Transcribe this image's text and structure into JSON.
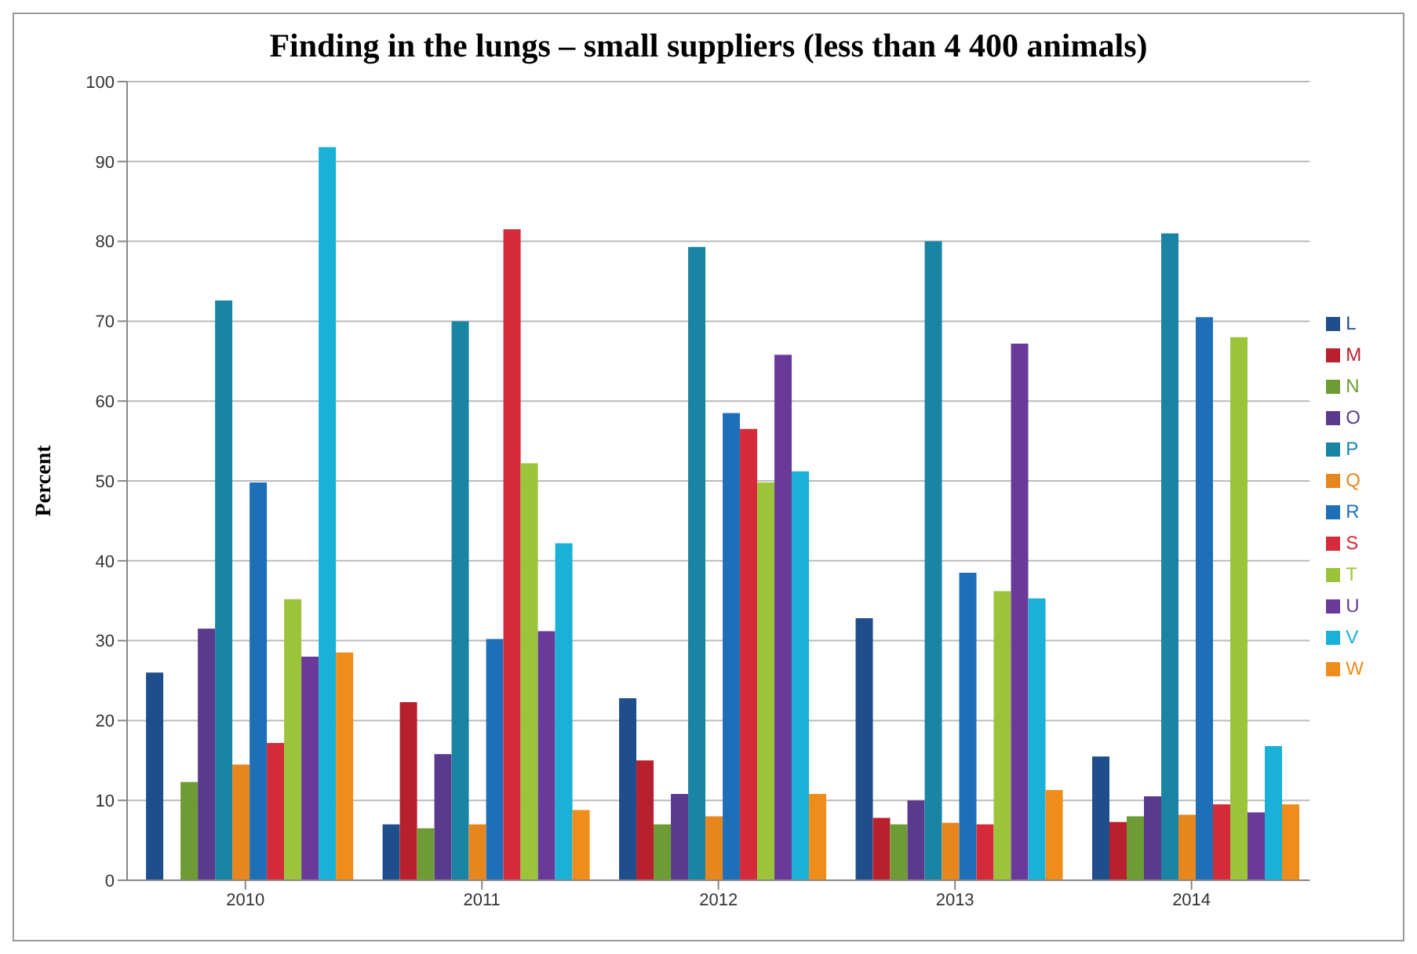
{
  "chart_data": {
    "type": "bar",
    "title": "Finding in the lungs – small suppliers (less than 4 400 animals)",
    "ylabel": "Percent",
    "categories": [
      "2010",
      "2011",
      "2012",
      "2013",
      "2014"
    ],
    "series": [
      {
        "name": "L",
        "color": "#1f4e8c",
        "values": [
          26,
          7,
          22.8,
          32.8,
          15.5
        ]
      },
      {
        "name": "M",
        "color": "#b8202e",
        "values": [
          null,
          22.3,
          15,
          7.8,
          7.3
        ]
      },
      {
        "name": "N",
        "color": "#6e9c34",
        "values": [
          12.3,
          6.5,
          7,
          7,
          8
        ]
      },
      {
        "name": "O",
        "color": "#5a3a8c",
        "values": [
          31.5,
          15.8,
          10.8,
          10,
          10.5
        ]
      },
      {
        "name": "P",
        "color": "#1a84a4",
        "values": [
          72.6,
          70,
          79.3,
          80,
          81
        ]
      },
      {
        "name": "Q",
        "color": "#e8861e",
        "values": [
          14.5,
          7,
          8,
          7.2,
          8.2
        ]
      },
      {
        "name": "R",
        "color": "#1f6fb8",
        "values": [
          49.8,
          30.2,
          58.5,
          38.5,
          70.5
        ]
      },
      {
        "name": "S",
        "color": "#d42a3a",
        "values": [
          17.2,
          81.5,
          56.5,
          7,
          9.5
        ]
      },
      {
        "name": "T",
        "color": "#9cc43a",
        "values": [
          35.2,
          52.2,
          49.8,
          36.2,
          68
        ]
      },
      {
        "name": "U",
        "color": "#6a3a9a",
        "values": [
          28,
          31.2,
          65.8,
          67.2,
          8.5
        ]
      },
      {
        "name": "V",
        "color": "#1ab0d8",
        "values": [
          91.8,
          42.2,
          51.2,
          35.3,
          16.8
        ]
      },
      {
        "name": "W",
        "color": "#f08c1a",
        "values": [
          28.5,
          8.8,
          10.8,
          11.3,
          9.5
        ]
      }
    ],
    "ylim": [
      0,
      100
    ],
    "yticks": [
      0,
      10,
      20,
      30,
      40,
      50,
      60,
      70,
      80,
      90,
      100
    ],
    "grid": "y",
    "legend": "right"
  }
}
